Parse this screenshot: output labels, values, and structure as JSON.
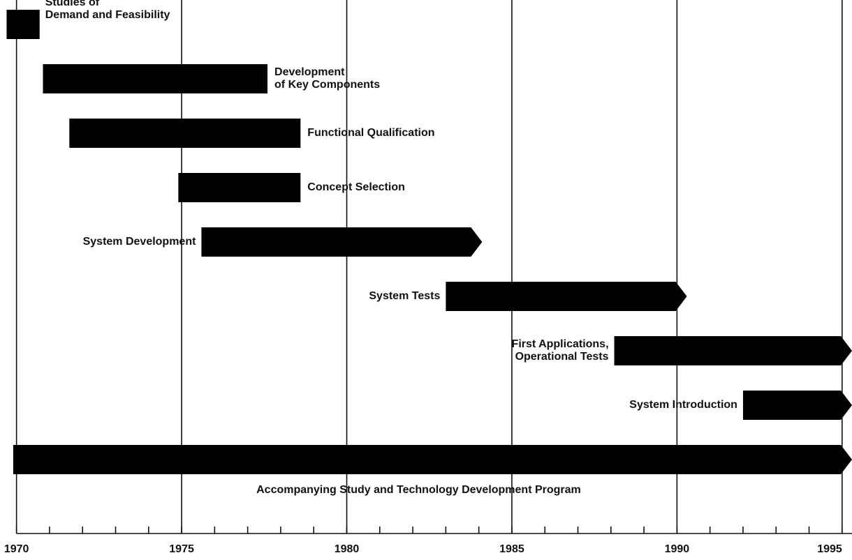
{
  "chart_data": {
    "type": "gantt",
    "xlim": [
      1969.5,
      1995.3
    ],
    "xticks": [
      1970,
      1975,
      1980,
      1985,
      1990,
      1995
    ],
    "minor_xticks": [
      1970,
      1971,
      1972,
      1973,
      1974,
      1975,
      1976,
      1977,
      1978,
      1979,
      1980,
      1981,
      1982,
      1983,
      1984,
      1985,
      1986,
      1987,
      1988,
      1989,
      1990,
      1991,
      1992,
      1993,
      1994,
      1995
    ],
    "grid": true,
    "color": "#000000",
    "tasks": [
      {
        "label": [
          "Studies of",
          "Demand and Feasibility"
        ],
        "start": 1969.7,
        "end": 1970.7,
        "arrow": false,
        "label_position": "right"
      },
      {
        "label": [
          "Development",
          "of Key Components"
        ],
        "start": 1970.8,
        "end": 1977.6,
        "arrow": false,
        "label_position": "right"
      },
      {
        "label": [
          "Functional Qualification"
        ],
        "start": 1971.6,
        "end": 1978.6,
        "arrow": false,
        "label_position": "right"
      },
      {
        "label": [
          "Concept Selection"
        ],
        "start": 1974.9,
        "end": 1978.6,
        "arrow": false,
        "label_position": "right"
      },
      {
        "label": [
          "System Development"
        ],
        "start": 1975.6,
        "end": 1984.1,
        "arrow": true,
        "label_position": "left"
      },
      {
        "label": [
          "System Tests"
        ],
        "start": 1983.0,
        "end": 1990.3,
        "arrow": true,
        "label_position": "left"
      },
      {
        "label": [
          "First Applications,",
          "Operational Tests"
        ],
        "start": 1988.1,
        "end": 1995.3,
        "arrow": true,
        "label_position": "left"
      },
      {
        "label": [
          "System Introduction"
        ],
        "start": 1992.0,
        "end": 1995.3,
        "arrow": true,
        "label_position": "left"
      },
      {
        "label": [
          "Accompanying Study and Technology Development Program"
        ],
        "start": 1969.9,
        "end": 1995.3,
        "arrow": true,
        "label_position": "below"
      }
    ]
  }
}
